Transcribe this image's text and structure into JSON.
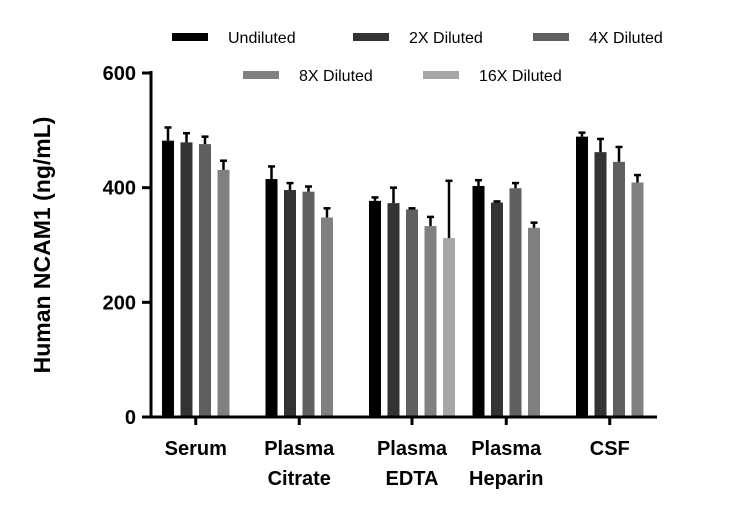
{
  "chart_data": {
    "type": "bar",
    "ylabel": "Human NCAM1 (ng/mL)",
    "xlabel": "",
    "ylim": [
      0,
      600
    ],
    "yticks": [
      "0",
      "200",
      "400",
      "600"
    ],
    "grid": false,
    "legend_placement": "top",
    "categories": [
      [
        "Serum"
      ],
      [
        "Plasma",
        "Citrate"
      ],
      [
        "Plasma",
        "EDTA"
      ],
      [
        "Plasma",
        "Heparin"
      ],
      [
        "CSF"
      ]
    ],
    "series": [
      {
        "name": "Undiluted",
        "color": "#000000",
        "values": [
          482,
          415,
          377,
          403,
          489
        ],
        "error": [
          23,
          22,
          6,
          10,
          7
        ]
      },
      {
        "name": "2X Diluted",
        "color": "#333333",
        "values": [
          479,
          396,
          373,
          374,
          462
        ],
        "error": [
          16,
          12,
          27,
          2,
          23
        ]
      },
      {
        "name": "4X Diluted",
        "color": "#5f5f5f",
        "values": [
          476,
          393,
          362,
          399,
          445
        ],
        "error": [
          13,
          9,
          2,
          9,
          26
        ]
      },
      {
        "name": "8X Diluted",
        "color": "#808080",
        "values": [
          431,
          348,
          333,
          330,
          409
        ],
        "error": [
          16,
          16,
          16,
          9,
          13
        ]
      },
      {
        "name": "16X Diluted",
        "color": "#a6a6a6",
        "values": [
          null,
          null,
          312,
          null,
          null
        ],
        "error": [
          null,
          null,
          100,
          null,
          null
        ]
      }
    ]
  }
}
